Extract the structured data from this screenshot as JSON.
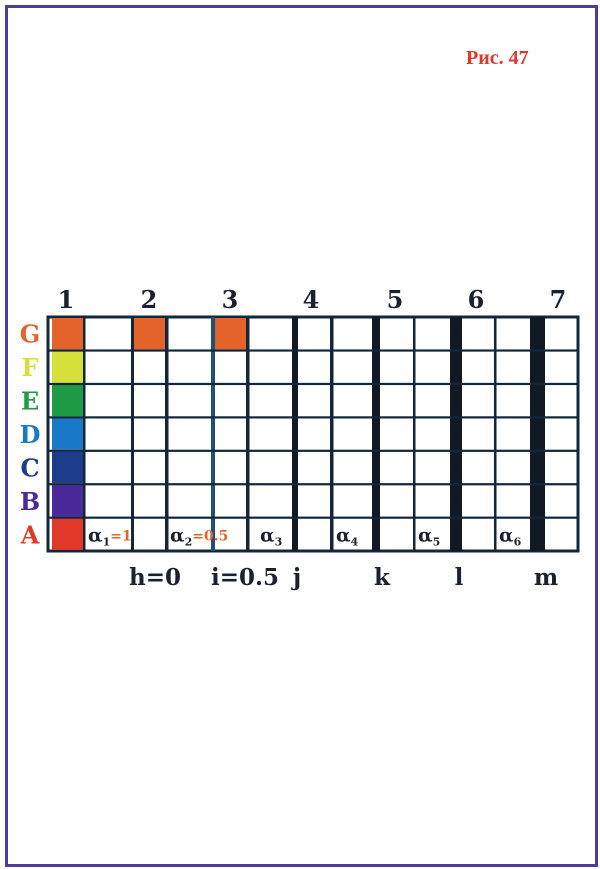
{
  "figure_label": "Рис. 47",
  "frame_color": "#4b3c9e",
  "column_labels": [
    "1",
    "2",
    "3",
    "4",
    "5",
    "6",
    "7"
  ],
  "row_labels": [
    {
      "label": "G",
      "color": "#e4632a"
    },
    {
      "label": "F",
      "color": "#d6e03a"
    },
    {
      "label": "E",
      "color": "#1f9a45"
    },
    {
      "label": "D",
      "color": "#1a78c8"
    },
    {
      "label": "C",
      "color": "#1c3c8c"
    },
    {
      "label": "B",
      "color": "#4a2a9a"
    },
    {
      "label": "A",
      "color": "#e0392a"
    }
  ],
  "highlight_color": "#e4632a",
  "highlighted_cells_row_G": [
    "2",
    "3"
  ],
  "bottom_labels": [
    "h=0",
    "i=0.5",
    "j",
    "k",
    "l",
    "m"
  ],
  "alpha_labels": [
    {
      "symbol": "α",
      "sub": "1",
      "value": "=1"
    },
    {
      "symbol": "α",
      "sub": "2",
      "value": "=0.5"
    },
    {
      "symbol": "α",
      "sub": "3",
      "value": ""
    },
    {
      "symbol": "α",
      "sub": "4",
      "value": ""
    },
    {
      "symbol": "α",
      "sub": "5",
      "value": ""
    },
    {
      "symbol": "α",
      "sub": "6",
      "value": ""
    }
  ],
  "alpha_value_color": "#e4632a",
  "line_color": "#13273a"
}
